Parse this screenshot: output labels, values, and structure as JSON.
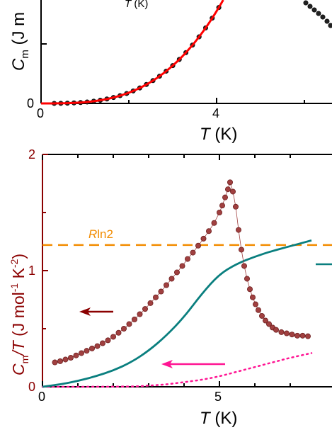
{
  "chart_data": [
    {
      "type": "scatter",
      "panel": "top (cropped)",
      "ylabel": {
        "main": "C",
        "sub": "m",
        "tail": " (J m"
      },
      "inset_xlabel": {
        "main": "T",
        "tail": " (K)"
      },
      "xlabel": {
        "main": "T",
        "tail": " (K)"
      },
      "x_ticks": [
        "0",
        "4"
      ],
      "y_ticks": [
        "0"
      ],
      "xlim": [
        0,
        6.2
      ],
      "colors": {
        "data": "#000000",
        "fit": "#ff0000"
      },
      "series": [
        {
          "kind": "markers",
          "x": [
            0.3,
            0.45,
            0.6,
            0.75,
            0.9,
            1.05,
            1.2,
            1.35,
            1.5,
            1.65,
            1.8,
            1.95,
            2.1,
            2.25,
            2.4,
            2.55,
            2.7,
            2.85,
            3.0,
            3.15,
            3.3,
            3.45,
            3.6,
            3.75,
            3.9,
            4.05,
            4.2
          ],
          "y_px": []
        }
      ]
    },
    {
      "type": "line",
      "panel": "bottom",
      "xlabel": {
        "main": "T",
        "tail": " (K)"
      },
      "ylabel": {
        "pre": "C",
        "sub": "m",
        "mid": "/T (J mol",
        "sup1": "-1",
        "mid2": " K",
        "sup2": "-2",
        "tail": ")"
      },
      "x_ticks": [
        "0",
        "5"
      ],
      "y_ticks": [
        "0",
        "1",
        "2"
      ],
      "xlim": [
        0,
        7.6
      ],
      "ylim": [
        0,
        2
      ],
      "annotation": {
        "italic": "R",
        "text": "ln2",
        "value": 1.22
      },
      "colors": {
        "data": "#a04040",
        "dataEdge": "#6e1f1f",
        "lattice": "#0a7f7f",
        "phonon": "#ff1493",
        "rln2": "#f28c00",
        "axisLeft": "#8b0000"
      },
      "series": [
        {
          "name": "",
          "kind": "markers",
          "x": [
            0.35,
            0.5,
            0.65,
            0.8,
            0.95,
            1.1,
            1.25,
            1.4,
            1.55,
            1.7,
            1.85,
            2.0,
            2.15,
            2.3,
            2.45,
            2.6,
            2.75,
            2.9,
            3.05,
            3.2,
            3.35,
            3.5,
            3.65,
            3.8,
            3.95,
            4.1,
            4.25,
            4.4,
            4.55,
            4.7,
            4.85,
            5.0,
            5.08,
            5.16,
            5.24,
            5.3,
            5.38,
            5.46,
            5.54,
            5.62,
            5.7,
            5.78,
            5.86,
            5.94,
            6.02,
            6.1,
            6.2,
            6.3,
            6.4,
            6.5,
            6.6,
            6.75,
            6.9,
            7.05,
            7.2,
            7.35,
            7.5
          ],
          "y": [
            0.21,
            0.22,
            0.235,
            0.25,
            0.27,
            0.29,
            0.31,
            0.33,
            0.35,
            0.375,
            0.4,
            0.43,
            0.465,
            0.5,
            0.54,
            0.58,
            0.625,
            0.67,
            0.72,
            0.77,
            0.82,
            0.875,
            0.93,
            0.985,
            1.04,
            1.1,
            1.155,
            1.215,
            1.275,
            1.34,
            1.41,
            1.5,
            1.56,
            1.63,
            1.7,
            1.76,
            1.68,
            1.55,
            1.35,
            1.18,
            1.04,
            0.93,
            0.84,
            0.77,
            0.71,
            0.66,
            0.61,
            0.57,
            0.54,
            0.51,
            0.49,
            0.47,
            0.46,
            0.45,
            0.44,
            0.44,
            0.435
          ]
        },
        {
          "name": "",
          "kind": "line",
          "x": [
            0,
            0.5,
            1.0,
            1.5,
            2.0,
            2.5,
            3.0,
            3.5,
            4.0,
            4.5,
            5.0,
            5.5,
            6.0,
            6.5,
            7.0,
            7.6
          ],
          "y": [
            0,
            0.02,
            0.05,
            0.09,
            0.14,
            0.21,
            0.31,
            0.44,
            0.6,
            0.8,
            0.97,
            1.06,
            1.12,
            1.17,
            1.21,
            1.26
          ]
        },
        {
          "name": "",
          "kind": "dotted",
          "x": [
            0,
            2.5,
            3.0,
            3.5,
            4.0,
            4.5,
            5.0,
            5.5,
            6.0,
            6.5,
            7.0,
            7.6
          ],
          "y": [
            0,
            0.0,
            0.01,
            0.02,
            0.04,
            0.06,
            0.09,
            0.13,
            0.17,
            0.21,
            0.25,
            0.29
          ]
        }
      ]
    }
  ]
}
